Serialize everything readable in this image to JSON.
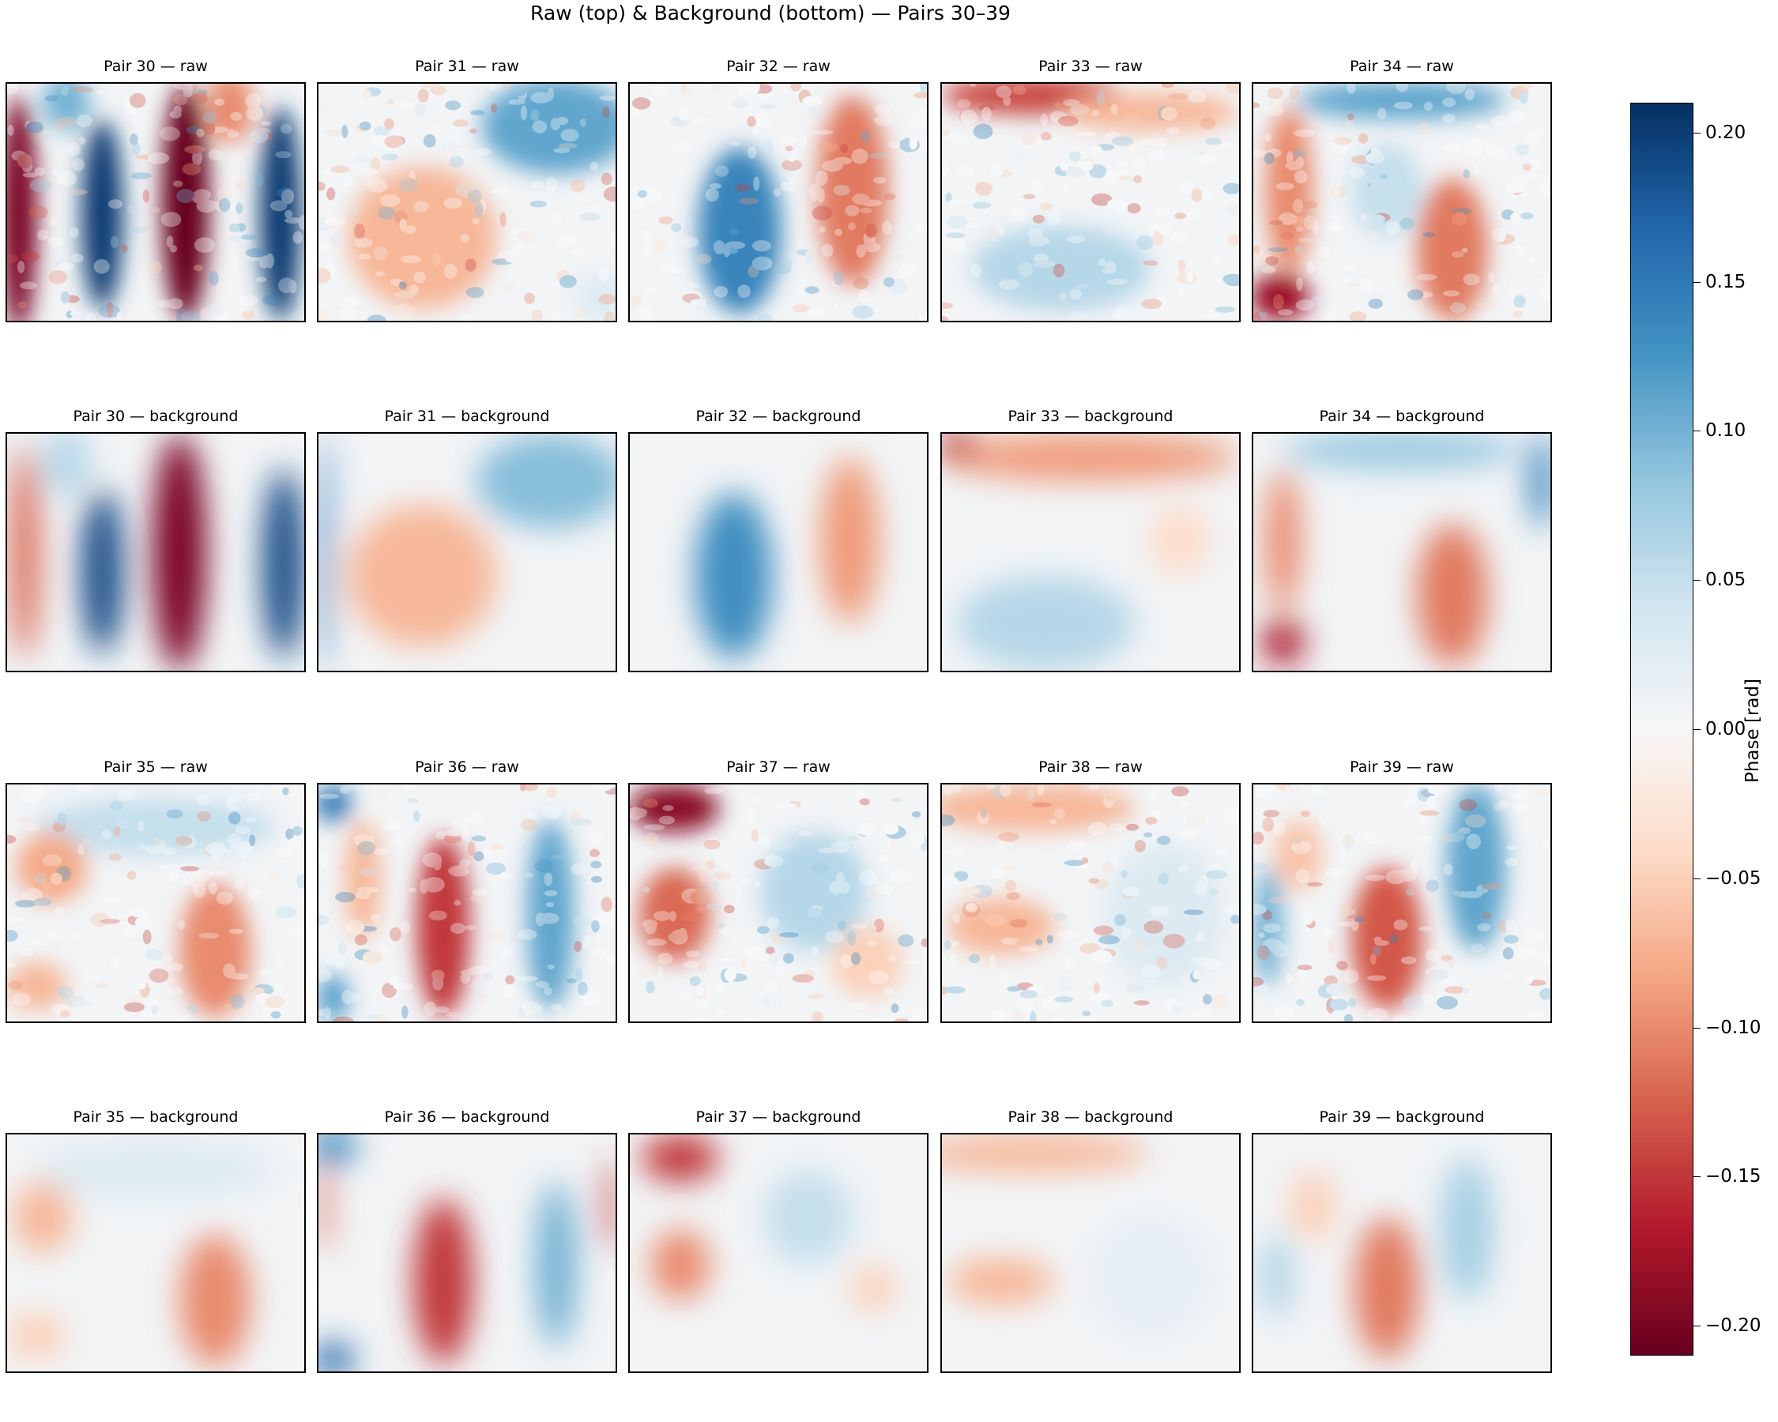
{
  "chart_data": {
    "type": "heatmap",
    "title": "Raw (top) & Background (bottom) — Pairs 30–39",
    "colormap": "RdBu",
    "colorbar": {
      "label": "Phase [rad]",
      "vmin": -0.21,
      "vmax": 0.21,
      "ticks": [
        "0.20",
        "0.15",
        "0.10",
        "0.05",
        "0.00",
        "−0.05",
        "−0.10",
        "−0.15",
        "−0.20"
      ],
      "tick_values": [
        0.2,
        0.15,
        0.1,
        0.05,
        0.0,
        -0.05,
        -0.1,
        -0.15,
        -0.2
      ]
    },
    "panels": [
      {
        "title": "Pair 30 — raw",
        "pair": 30,
        "kind": "raw",
        "pattern": "vertical bands left to right: red, blue, red, blue; strong (about ±0.2 rad)"
      },
      {
        "title": "Pair 31 — raw",
        "pair": 31,
        "kind": "raw",
        "pattern": "blue upper-right, light red lower-left; weak (about ±0.1 rad)"
      },
      {
        "title": "Pair 32 — raw",
        "pair": 32,
        "kind": "raw",
        "pattern": "blue center-left band, red right band"
      },
      {
        "title": "Pair 33 — raw",
        "pair": 33,
        "kind": "raw",
        "pattern": "red top strip, light blue lower area, thin horizontal line artifacts"
      },
      {
        "title": "Pair 34 — raw",
        "pair": 34,
        "kind": "raw",
        "pattern": "blue top, red left and lower-right lobes, strong red lower-left corner"
      },
      {
        "title": "Pair 30 — background",
        "pair": 30,
        "kind": "background",
        "pattern": "smooth vertical bands: red, blue, red, blue"
      },
      {
        "title": "Pair 31 — background",
        "pair": 31,
        "kind": "background",
        "pattern": "smooth: blue upper-right, light red lower-left"
      },
      {
        "title": "Pair 32 — background",
        "pair": 32,
        "kind": "background",
        "pattern": "smooth: blue center, red right"
      },
      {
        "title": "Pair 33 — background",
        "pair": 33,
        "kind": "background",
        "pattern": "smooth: red top, light blue bottom"
      },
      {
        "title": "Pair 34 — background",
        "pair": 34,
        "kind": "background",
        "pattern": "smooth: blue top, red lobes left and lower-right"
      },
      {
        "title": "Pair 35 — raw",
        "pair": 35,
        "kind": "raw",
        "pattern": "light blue top, red left and lower-right patches, horizontal line artifacts"
      },
      {
        "title": "Pair 36 — raw",
        "pair": 36,
        "kind": "raw",
        "pattern": "red center vertical band, blue right band, blue edges"
      },
      {
        "title": "Pair 37 — raw",
        "pair": 37,
        "kind": "raw",
        "pattern": "dark red upper-left, red left-middle, light blue right"
      },
      {
        "title": "Pair 38 — raw",
        "pair": 38,
        "kind": "raw",
        "pattern": "weak: light red top and left-middle, light blue right"
      },
      {
        "title": "Pair 39 — raw",
        "pair": 39,
        "kind": "raw",
        "pattern": "red center-lower band, blue right band and left edge"
      },
      {
        "title": "Pair 35 — background",
        "pair": 35,
        "kind": "background",
        "pattern": "smooth: light red left and lower-right, light blue elsewhere"
      },
      {
        "title": "Pair 36 — background",
        "pair": 36,
        "kind": "background",
        "pattern": "smooth: red center band, blue right band, blue corners"
      },
      {
        "title": "Pair 37 — background",
        "pair": 37,
        "kind": "background",
        "pattern": "smooth: red upper-left and left-middle, light blue right"
      },
      {
        "title": "Pair 38 — background",
        "pair": 38,
        "kind": "background",
        "pattern": "smooth and weak: light red top and left-middle"
      },
      {
        "title": "Pair 39 — background",
        "pair": 39,
        "kind": "background",
        "pattern": "smooth: red center-lower band, blue right"
      }
    ]
  }
}
